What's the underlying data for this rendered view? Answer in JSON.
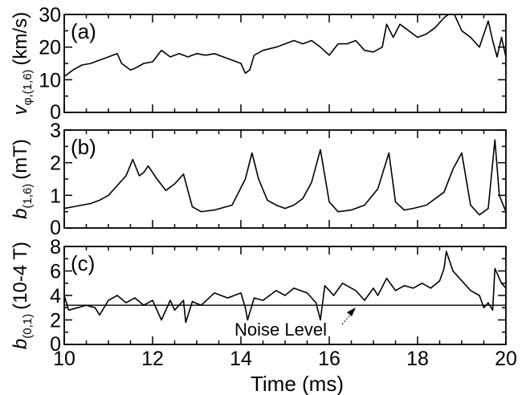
{
  "figure": {
    "xlabel": "Time (ms)",
    "x_ticks": [
      "10",
      "12",
      "14",
      "16",
      "18",
      "20"
    ]
  },
  "chart_data": [
    {
      "type": "line",
      "panel_label": "(a)",
      "ylabel": {
        "main": "v",
        "sub": "φ,(1,6)",
        "units": "(km/s)"
      },
      "xlim": [
        10,
        20
      ],
      "ylim": [
        0,
        30
      ],
      "x_ticks": [
        10,
        12,
        14,
        16,
        18,
        20
      ],
      "y_ticks": [
        0,
        10,
        20,
        30
      ],
      "series": [
        {
          "x": [
            10.0,
            10.2,
            10.4,
            10.6,
            10.8,
            11.0,
            11.2,
            11.3,
            11.4,
            11.5,
            11.6,
            11.8,
            12.0,
            12.2,
            12.4,
            12.6,
            12.8,
            13.0,
            13.2,
            13.4,
            13.6,
            13.8,
            14.0,
            14.1,
            14.2,
            14.3,
            14.5,
            14.8,
            15.0,
            15.2,
            15.4,
            15.6,
            15.8,
            16.0,
            16.2,
            16.4,
            16.6,
            16.8,
            17.0,
            17.2,
            17.3,
            17.45,
            17.6,
            17.8,
            18.0,
            18.2,
            18.4,
            18.6,
            18.8,
            19.0,
            19.2,
            19.4,
            19.6,
            19.7,
            19.8,
            19.9,
            20.0
          ],
          "y": [
            11,
            13,
            14.5,
            15,
            16,
            17,
            18,
            15,
            14,
            13,
            13.5,
            15,
            15.5,
            19,
            17,
            18,
            17,
            18,
            17.5,
            18,
            17,
            16,
            15,
            12,
            13,
            17.5,
            19,
            20,
            21,
            22,
            21,
            22,
            20,
            17.5,
            21,
            21,
            22,
            19,
            18.5,
            20,
            27,
            23,
            27,
            25,
            23,
            24,
            26,
            29,
            31,
            25,
            23,
            20,
            28,
            22,
            17,
            23,
            17
          ]
        }
      ]
    },
    {
      "type": "line",
      "panel_label": "(b)",
      "ylabel": {
        "main": "b",
        "sub": "(1,6)",
        "units": "(mT)"
      },
      "xlim": [
        10,
        20
      ],
      "ylim": [
        0,
        3
      ],
      "x_ticks": [
        10,
        12,
        14,
        16,
        18,
        20
      ],
      "y_ticks": [
        0,
        1,
        2,
        3
      ],
      "series": [
        {
          "x": [
            10.0,
            10.2,
            10.4,
            10.6,
            10.8,
            11.0,
            11.2,
            11.4,
            11.55,
            11.7,
            11.8,
            11.9,
            12.1,
            12.3,
            12.5,
            12.7,
            12.9,
            13.1,
            13.4,
            13.8,
            14.1,
            14.25,
            14.4,
            14.6,
            14.8,
            15.0,
            15.2,
            15.4,
            15.6,
            15.8,
            16.0,
            16.2,
            16.5,
            16.8,
            17.1,
            17.35,
            17.5,
            17.7,
            17.9,
            18.2,
            18.6,
            18.8,
            19.0,
            19.2,
            19.4,
            19.6,
            19.75,
            19.85,
            20.0
          ],
          "y": [
            0.6,
            0.65,
            0.7,
            0.75,
            0.85,
            1.0,
            1.3,
            1.6,
            2.1,
            1.6,
            1.7,
            1.9,
            1.5,
            1.15,
            1.35,
            1.65,
            0.65,
            0.5,
            0.55,
            0.7,
            1.5,
            2.3,
            1.5,
            0.85,
            0.7,
            0.6,
            0.7,
            0.9,
            1.4,
            2.4,
            0.8,
            0.5,
            0.55,
            0.7,
            1.2,
            2.3,
            0.8,
            0.55,
            0.6,
            0.7,
            1.1,
            1.8,
            2.3,
            0.7,
            0.4,
            0.6,
            2.7,
            1.0,
            0.5
          ]
        }
      ]
    },
    {
      "type": "line",
      "panel_label": "(c)",
      "ylabel": {
        "main": "b",
        "sub": "(0,1)",
        "units": "(10-4 T)"
      },
      "xlim": [
        10,
        20
      ],
      "ylim": [
        0,
        8
      ],
      "x_ticks": [
        10,
        12,
        14,
        16,
        18,
        20
      ],
      "y_ticks": [
        0,
        2,
        4,
        6,
        8
      ],
      "noise_level": 3.2,
      "annotation": "Noise Level",
      "series": [
        {
          "x": [
            10.0,
            10.1,
            10.3,
            10.5,
            10.7,
            10.8,
            11.0,
            11.2,
            11.4,
            11.6,
            11.8,
            12.0,
            12.2,
            12.4,
            12.5,
            12.7,
            12.75,
            12.9,
            13.1,
            13.4,
            13.7,
            14.0,
            14.1,
            14.15,
            14.3,
            14.5,
            14.8,
            15.0,
            15.2,
            15.5,
            15.7,
            15.8,
            15.9,
            16.1,
            16.3,
            16.6,
            16.8,
            17.0,
            17.1,
            17.3,
            17.5,
            17.7,
            17.9,
            18.1,
            18.3,
            18.5,
            18.6,
            18.65,
            18.8,
            19.0,
            19.2,
            19.4,
            19.5,
            19.6,
            19.7,
            19.75,
            19.9,
            20.0
          ],
          "y": [
            4.0,
            2.8,
            3.0,
            3.2,
            3.0,
            2.4,
            3.6,
            4.0,
            3.4,
            3.8,
            3.2,
            3.6,
            2.0,
            3.6,
            2.8,
            3.6,
            1.8,
            3.5,
            3.2,
            4.2,
            3.8,
            4.2,
            3.0,
            2.0,
            3.8,
            3.6,
            4.4,
            4.0,
            4.6,
            4.2,
            3.4,
            2.0,
            4.8,
            4.0,
            5.0,
            4.4,
            3.6,
            4.6,
            4.0,
            5.4,
            4.4,
            4.8,
            4.6,
            5.0,
            4.6,
            5.2,
            6.2,
            7.6,
            6.0,
            5.2,
            4.4,
            4.0,
            3.0,
            3.4,
            2.8,
            6.2,
            5.0,
            4.6
          ]
        }
      ]
    }
  ]
}
